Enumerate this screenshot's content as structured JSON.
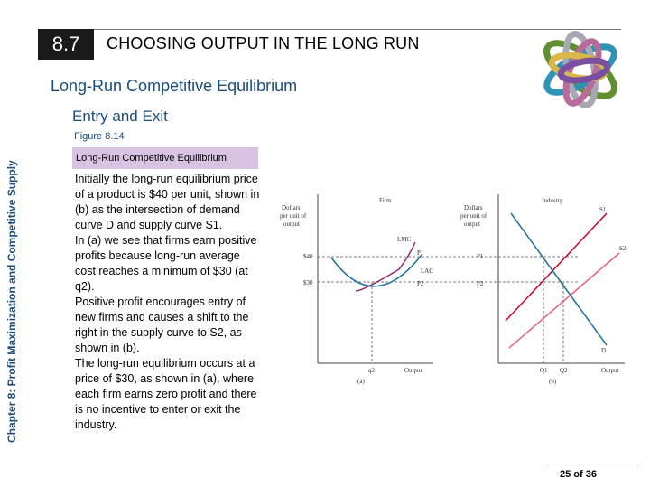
{
  "header": {
    "section_number": "8.7",
    "chapter_title": "CHOOSING OUTPUT IN THE LONG RUN"
  },
  "subtitle": "Long-Run Competitive Equilibrium",
  "section_title": "Entry and Exit",
  "side_label": "Chapter 8:  Profit Maximization and Competitive Supply",
  "figure": {
    "number_label": "Figure 8.14",
    "title": "Long-Run Competitive Equilibrium",
    "labels": {
      "firm": "Firm",
      "industry": "Industry",
      "dollars_left": [
        "Dollars",
        "per unit of",
        "output"
      ],
      "dollars_right": [
        "Dollars",
        "per unit of",
        "output"
      ],
      "price_40": "$40",
      "price_30": "$30",
      "lmc": "LMC",
      "lac": "LAC",
      "p1_left": "P1",
      "p2_left": "P2",
      "p1_right": "P1",
      "p2_right": "P2",
      "s1": "S1",
      "s2": "S2",
      "d": "D",
      "q2": "q2",
      "q1_ind": "Q1",
      "q2_ind": "Q2",
      "output_left": "Output",
      "output_right": "Output",
      "panel_a": "(a)",
      "panel_b": "(b)"
    },
    "colors": {
      "lmc": "#8a2a6a",
      "lac": "#1d6fa0",
      "s1": "#cc0033",
      "s2": "#e8607a",
      "d": "#1d6fa0"
    }
  },
  "body_paragraphs": [
    "Initially the long-run equilibrium price of a product is $40 per unit, shown in (b) as the intersection of demand curve D and supply curve S1.",
    "In (a) we see that firms earn positive profits because long-run average cost reaches a minimum of $30 (at q2).",
    "Positive profit encourages entry of new firms and causes a shift to the right in the supply curve to S2, as shown in (b).",
    "The long-run equilibrium occurs at a price of $30, as shown in (a), where each firm earns zero profit and there is no incentive to enter or exit the industry."
  ],
  "page": "25 of 36"
}
